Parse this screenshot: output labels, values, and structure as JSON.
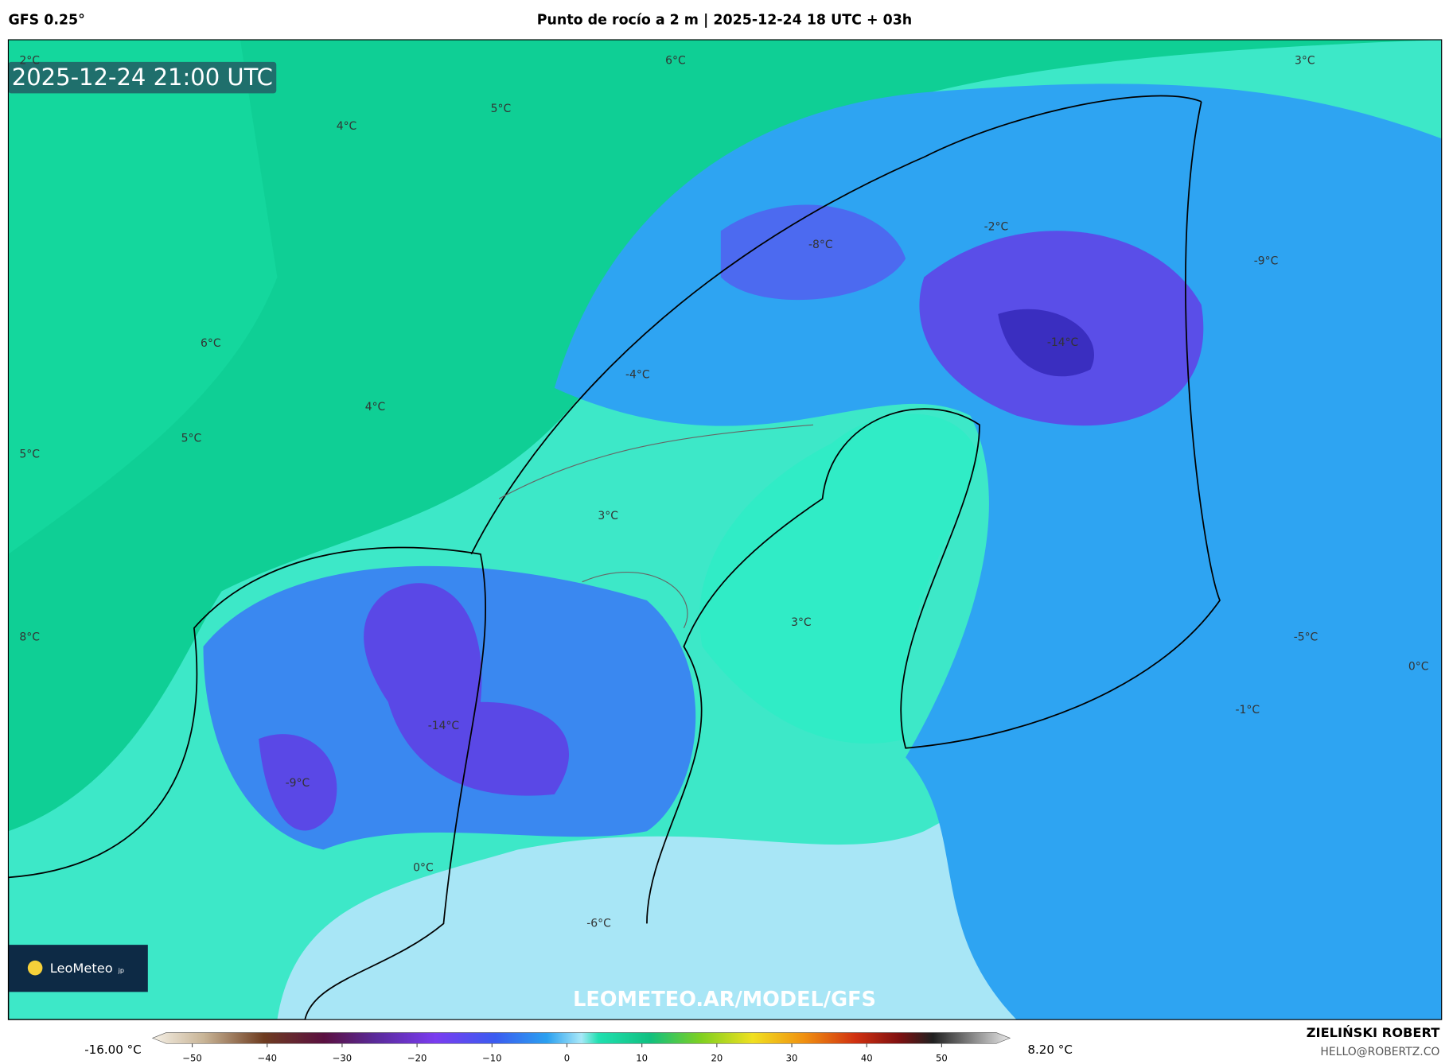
{
  "header": {
    "model": "GFS 0.25°",
    "title": "Punto de rocío a 2 m | 2025-12-24 18 UTC + 03h"
  },
  "map": {
    "valid_time": "2025-12-24 21:00 UTC",
    "contour_labels": [
      "2°C",
      "6°C",
      "3°C",
      "5°C",
      "4°C",
      "-8°C",
      "-2°C",
      "-9°C",
      "6°C",
      "-14°C",
      "-4°C",
      "4°C",
      "5°C",
      "5°C",
      "3°C",
      "3°C",
      "8°C",
      "-5°C",
      "0°C",
      "-1°C",
      "-14°C",
      "-9°C",
      "0°C",
      "-6°C"
    ],
    "logo": "LeoMeteo",
    "logo_suffix": "jp",
    "url": "LEOMETEO.AR/MODEL/GFS"
  },
  "colorbar": {
    "min_label": "-16.00 °C",
    "max_label": "8.20 °C",
    "ticks": [
      "−50",
      "−40",
      "−30",
      "−20",
      "−10",
      "0",
      "10",
      "20",
      "30",
      "40",
      "50"
    ]
  },
  "footer": {
    "author": "ZIELIŃSKI ROBERT",
    "contact": "HELLO@ROBERTZ.CO"
  }
}
